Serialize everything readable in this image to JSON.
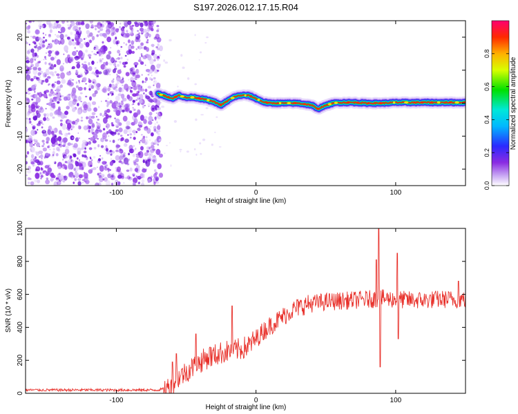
{
  "title": "S197.2026.012.17.15.R04",
  "chart_data": [
    {
      "type": "heatmap",
      "name": "spectrogram",
      "xlabel": "Height of straight line (km)",
      "ylabel": "Frequency (Hz)",
      "xlim": [
        -165,
        150
      ],
      "ylim": [
        -25,
        25
      ],
      "xticks": [
        -100,
        0,
        100
      ],
      "yticks": [
        -20,
        -10,
        0,
        10,
        20
      ],
      "noise_region_x": [
        -165,
        -70
      ],
      "signal_start_x": -70,
      "ridge": {
        "x": [
          -70,
          -65,
          -60,
          -55,
          -50,
          -45,
          -40,
          -35,
          -30,
          -25,
          -20,
          -15,
          -10,
          -5,
          0,
          5,
          10,
          20,
          30,
          40,
          44,
          48,
          55,
          60,
          70,
          80,
          90,
          100,
          110,
          120,
          130,
          140,
          150
        ],
        "freq": [
          2.8,
          2.2,
          1.4,
          2.4,
          1.6,
          1.8,
          1.4,
          1.0,
          0.4,
          -0.6,
          0.8,
          2.0,
          2.4,
          2.3,
          1.4,
          0.4,
          0.0,
          0.0,
          0.0,
          -0.6,
          -1.8,
          -1.0,
          0.0,
          0.2,
          0.2,
          0.0,
          0.0,
          0.2,
          0.2,
          0.2,
          0.2,
          0.2,
          0.2
        ]
      },
      "colorbar": {
        "label": "Normalized spectral amplitude",
        "range": [
          0,
          1
        ],
        "ticks": [
          0.0,
          0.2,
          0.4,
          0.6,
          0.8
        ]
      }
    },
    {
      "type": "line",
      "name": "snr",
      "xlabel": "Height of straight line (km)",
      "ylabel": "SNR (10 * v/v)",
      "xlim": [
        -165,
        150
      ],
      "ylim": [
        0,
        1000
      ],
      "xticks": [
        -100,
        0,
        100
      ],
      "yticks": [
        0,
        200,
        400,
        600,
        800,
        1000
      ],
      "color": "#e8302a",
      "envelope": {
        "x": [
          -165,
          -70,
          -62,
          -55,
          -50,
          -45,
          -40,
          -35,
          -30,
          -25,
          -20,
          -15,
          -10,
          -5,
          0,
          5,
          10,
          15,
          20,
          25,
          30,
          35,
          40,
          45,
          50,
          60,
          70,
          80,
          90,
          100,
          110,
          120,
          130,
          140,
          150
        ],
        "y": [
          20,
          20,
          35,
          100,
          130,
          160,
          190,
          215,
          230,
          245,
          255,
          260,
          270,
          290,
          330,
          375,
          410,
          440,
          470,
          500,
          520,
          535,
          545,
          550,
          555,
          560,
          565,
          570,
          575,
          570,
          565,
          565,
          570,
          570,
          570
        ]
      },
      "spikes": [
        {
          "x": -60,
          "y": 190
        },
        {
          "x": -57,
          "y": 240
        },
        {
          "x": -43,
          "y": 360
        },
        {
          "x": -33,
          "y": 280
        },
        {
          "x": -17,
          "y": 530
        },
        {
          "x": 86,
          "y": 810
        },
        {
          "x": 88,
          "y": 1000
        },
        {
          "x": 89,
          "y": 160
        },
        {
          "x": 101,
          "y": 850
        },
        {
          "x": 102,
          "y": 330
        },
        {
          "x": 145,
          "y": 680
        }
      ]
    }
  ]
}
